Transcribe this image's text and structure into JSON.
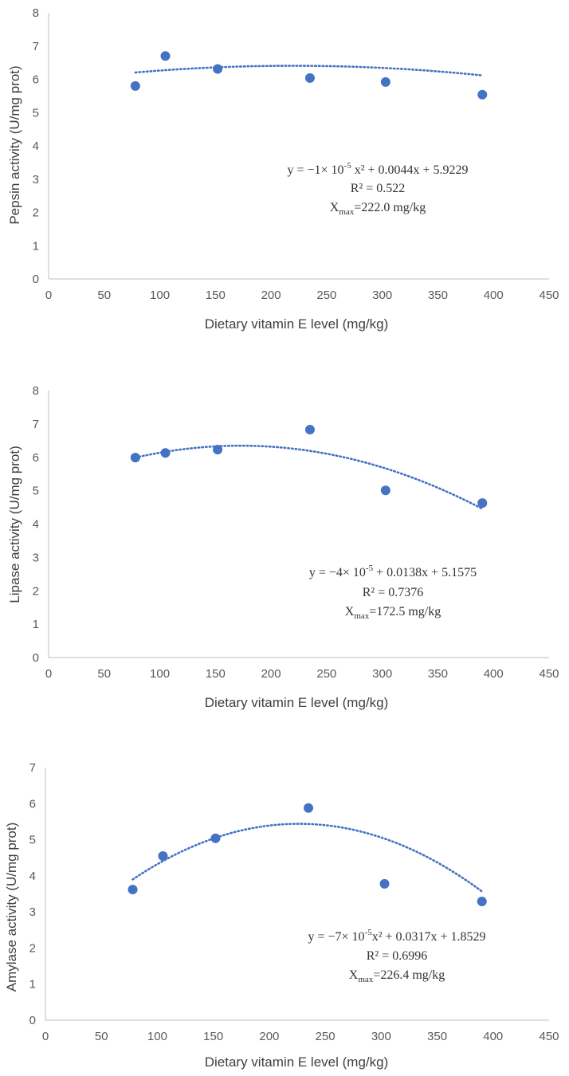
{
  "chart_data": [
    {
      "type": "scatter",
      "ylabel": "Pepsin activity (U/mg prot)",
      "xlabel": "Dietary vitamin E level (mg/kg)",
      "xlim": [
        0,
        450
      ],
      "ylim": [
        0,
        8
      ],
      "xticks": [
        0,
        50,
        100,
        150,
        200,
        250,
        300,
        350,
        400,
        450
      ],
      "yticks": [
        0,
        1,
        2,
        3,
        4,
        5,
        6,
        7,
        8
      ],
      "points": [
        {
          "x": 78,
          "y": 5.8
        },
        {
          "x": 105,
          "y": 6.7
        },
        {
          "x": 152,
          "y": 6.31
        },
        {
          "x": 235,
          "y": 6.04
        },
        {
          "x": 303,
          "y": 5.92
        },
        {
          "x": 390,
          "y": 5.54
        }
      ],
      "trend": {
        "type": "polynomial",
        "a": -1e-05,
        "b": 0.0044,
        "c": 5.9229
      },
      "equation_parts": [
        "y = −1× 10",
        "-5",
        " x² + 0.0044x + 5.9229"
      ],
      "r2": "R² = 0.522",
      "xmax_parts": [
        "X",
        "max",
        "=222.0 mg/kg"
      ],
      "grid": false,
      "legend": "none",
      "marker_color": "#4472C4"
    },
    {
      "type": "scatter",
      "ylabel": "Lipase activity (U/mg prot)",
      "xlabel": "Dietary vitamin E level (mg/kg)",
      "xlim": [
        0,
        450
      ],
      "ylim": [
        0,
        8
      ],
      "xticks": [
        0,
        50,
        100,
        150,
        200,
        250,
        300,
        350,
        400,
        450
      ],
      "yticks": [
        0,
        1,
        2,
        3,
        4,
        5,
        6,
        7,
        8
      ],
      "points": [
        {
          "x": 78,
          "y": 5.99
        },
        {
          "x": 105,
          "y": 6.13
        },
        {
          "x": 152,
          "y": 6.23
        },
        {
          "x": 235,
          "y": 6.83
        },
        {
          "x": 303,
          "y": 5.01
        },
        {
          "x": 390,
          "y": 4.63
        }
      ],
      "trend": {
        "type": "polynomial",
        "a": -4e-05,
        "b": 0.0138,
        "c": 5.1575
      },
      "equation_parts": [
        "y = −4× 10",
        "-5",
        " + 0.0138x + 5.1575"
      ],
      "r2": "R² = 0.7376",
      "xmax_parts": [
        "X",
        "max",
        "=172.5 mg/kg"
      ],
      "grid": false,
      "legend": "none",
      "marker_color": "#4472C4"
    },
    {
      "type": "scatter",
      "ylabel": "Amylase activity (U/mg prot)",
      "xlabel": "Dietary vitamin E level (mg/kg)",
      "xlim": [
        0,
        450
      ],
      "ylim": [
        0,
        7
      ],
      "xticks": [
        0,
        50,
        100,
        150,
        200,
        250,
        300,
        350,
        400,
        450
      ],
      "yticks": [
        0,
        1,
        2,
        3,
        4,
        5,
        6,
        7
      ],
      "points": [
        {
          "x": 78,
          "y": 3.62
        },
        {
          "x": 105,
          "y": 4.55
        },
        {
          "x": 152,
          "y": 5.04
        },
        {
          "x": 235,
          "y": 5.88
        },
        {
          "x": 303,
          "y": 3.78
        },
        {
          "x": 390,
          "y": 3.29
        }
      ],
      "trend": {
        "type": "polynomial",
        "a": -7e-05,
        "b": 0.0317,
        "c": 1.8529
      },
      "equation_parts": [
        "y = −7× 10",
        "-5",
        "x² + 0.0317x + 1.8529"
      ],
      "r2": "R² = 0.6996",
      "xmax_parts": [
        "X",
        "max",
        "=226.4 mg/kg"
      ],
      "grid": false,
      "legend": "none",
      "marker_color": "#4472C4"
    }
  ]
}
